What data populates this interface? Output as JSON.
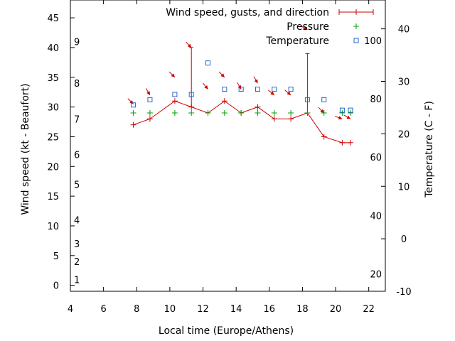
{
  "chart_data": {
    "type": "line",
    "xlabel": "Local time (Europe/Athens)",
    "ylabel": "Wind speed (kt - Beaufort)",
    "y2label": "Temperature (C - F)",
    "xlim": [
      4,
      23
    ],
    "ylim": [
      -1,
      48
    ],
    "y2lim": [
      -10,
      45.5
    ],
    "x_ticks": [
      4,
      6,
      8,
      10,
      12,
      14,
      16,
      18,
      20,
      22
    ],
    "y_ticks": [
      0,
      5,
      10,
      15,
      20,
      25,
      30,
      35,
      40,
      45
    ],
    "y2_ticks": [
      -10,
      0,
      10,
      20,
      30,
      40
    ],
    "beaufort_scale": [
      {
        "label": "1",
        "kt": 1
      },
      {
        "label": "2",
        "kt": 4
      },
      {
        "label": "3",
        "kt": 7
      },
      {
        "label": "4",
        "kt": 11
      },
      {
        "label": "5",
        "kt": 17
      },
      {
        "label": "6",
        "kt": 22
      },
      {
        "label": "7",
        "kt": 28
      },
      {
        "label": "8",
        "kt": 34
      },
      {
        "label": "9",
        "kt": 41
      }
    ],
    "fahrenheit_scale": [
      {
        "label": "20",
        "celsius": -6.7
      },
      {
        "label": "40",
        "celsius": 4.4
      },
      {
        "label": "60",
        "celsius": 15.6
      },
      {
        "label": "80",
        "celsius": 26.7
      },
      {
        "label": "100",
        "celsius": 37.8
      }
    ],
    "legend_position": "top-right",
    "series": [
      {
        "name": "Wind speed, gusts, and direction",
        "color": "#cc0000",
        "x": [
          7.8,
          8.8,
          10.3,
          11.3,
          12.3,
          13.3,
          14.3,
          15.3,
          16.3,
          17.3,
          18.3,
          19.3,
          20.4,
          20.9
        ],
        "values": [
          27,
          28,
          31,
          30,
          29,
          31,
          29,
          30,
          28,
          28,
          29,
          25,
          24,
          24
        ],
        "gust_x": [
          11.3,
          18.3
        ],
        "gust_values": [
          40,
          39
        ],
        "arrow_x": [
          7.8,
          8.8,
          10.3,
          11.3,
          12.3,
          13.3,
          14.3,
          15.3,
          16.3,
          17.3,
          18.3,
          19.3,
          20.4,
          20.9
        ],
        "arrow_y": [
          30.5,
          32,
          35,
          40,
          33,
          35,
          33,
          34,
          32,
          32,
          43,
          29,
          28,
          28
        ],
        "arrow_direction_deg": [
          315,
          330,
          315,
          315,
          320,
          315,
          330,
          330,
          310,
          310,
          300,
          315,
          290,
          300
        ]
      },
      {
        "name": "Pressure",
        "color": "#00a000",
        "x": [
          7.8,
          8.8,
          10.3,
          11.3,
          12.3,
          13.3,
          14.3,
          15.3,
          16.3,
          17.3,
          18.3,
          19.3,
          20.4,
          20.9
        ],
        "values": [
          29,
          29,
          29,
          29,
          29,
          29,
          29,
          29,
          29,
          29,
          29,
          29,
          29,
          29
        ]
      },
      {
        "name": "Temperature",
        "color": "#2266cc",
        "x": [
          7.8,
          8.8,
          10.3,
          11.3,
          12.3,
          13.3,
          14.3,
          15.3,
          16.3,
          17.3,
          18.3,
          19.3,
          20.4,
          20.9
        ],
        "values": [
          25.5,
          26.5,
          27.5,
          27.5,
          33.5,
          28.5,
          28.5,
          28.5,
          28.5,
          28.5,
          26.5,
          26.5,
          24.5,
          24.5
        ]
      }
    ]
  }
}
